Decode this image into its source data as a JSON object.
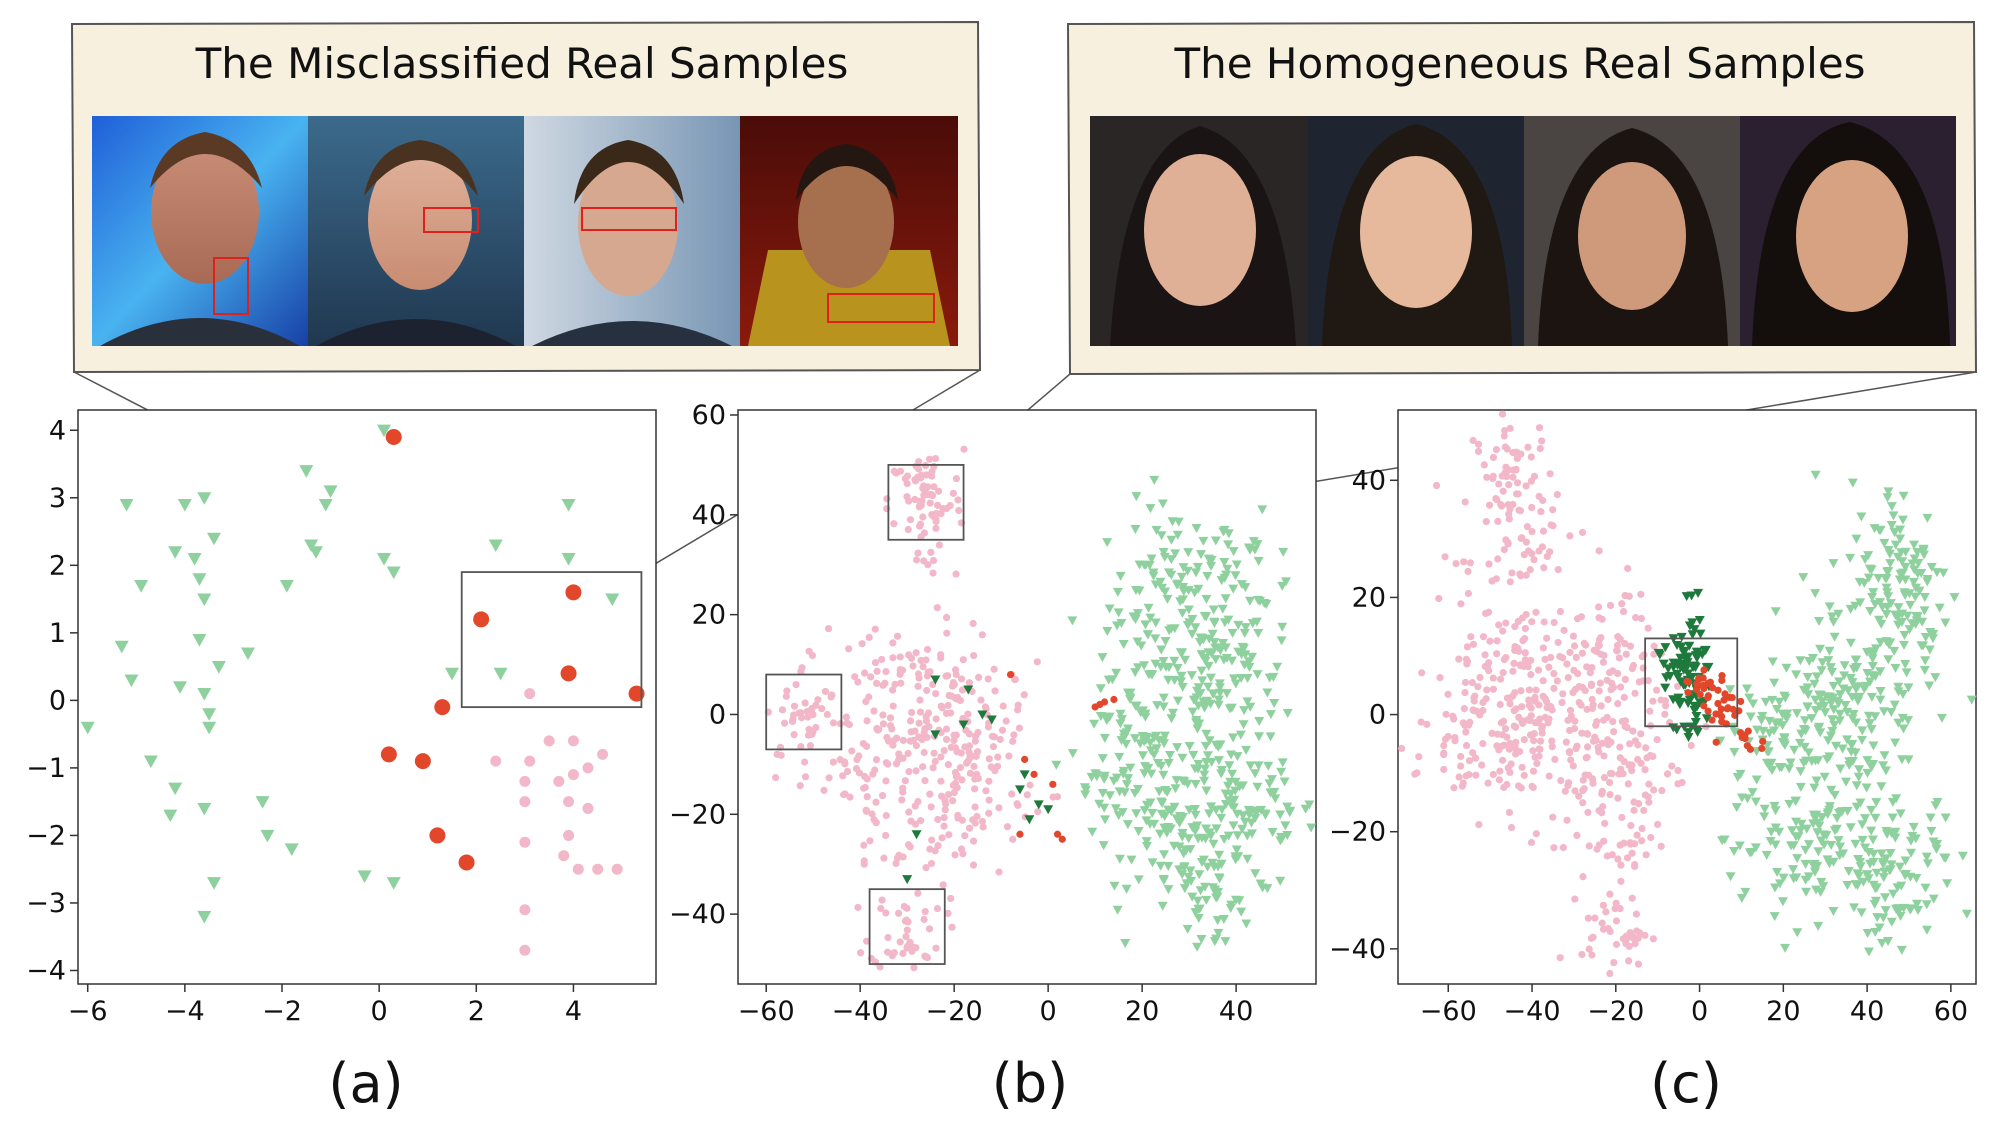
{
  "callouts": [
    {
      "title": "The Misclassified Real Samples"
    },
    {
      "title": "The Homogeneous Real Samples"
    }
  ],
  "colors": {
    "real": "#f2b8c9",
    "fake": "#8fd19e",
    "misclassified": "#e2472b",
    "fake_dark": "#1e7a3c",
    "callout_bg": "#f7f0df"
  },
  "chart_data": [
    {
      "type": "scatter",
      "panel_label": "(a)",
      "xlim": [
        -6.2,
        5.7
      ],
      "ylim": [
        -4.2,
        4.3
      ],
      "xticks": [
        -6,
        -4,
        -2,
        0,
        2,
        4
      ],
      "yticks": [
        -4,
        -3,
        -2,
        -1,
        0,
        1,
        2,
        3,
        4
      ],
      "tick_labels_x": [
        "−6",
        "−4",
        "−2",
        "0",
        "2",
        "4"
      ],
      "tick_labels_y": [
        "−4",
        "−3",
        "−2",
        "−1",
        "0",
        "1",
        "2",
        "3",
        "4"
      ],
      "zoom_box": {
        "x": [
          1.7,
          5.4
        ],
        "y": [
          -0.1,
          1.9
        ]
      },
      "series": [
        {
          "marker": "triangle",
          "color": "fake",
          "points": [
            [
              0.1,
              4.0
            ],
            [
              -5.2,
              2.9
            ],
            [
              -4.0,
              2.9
            ],
            [
              -3.6,
              3.0
            ],
            [
              -1.5,
              3.4
            ],
            [
              -1.0,
              3.1
            ],
            [
              -1.1,
              2.9
            ],
            [
              -3.4,
              2.4
            ],
            [
              -4.2,
              2.2
            ],
            [
              -3.8,
              2.1
            ],
            [
              -1.4,
              2.3
            ],
            [
              -1.3,
              2.2
            ],
            [
              0.1,
              2.1
            ],
            [
              0.3,
              1.9
            ],
            [
              -4.9,
              1.7
            ],
            [
              -3.7,
              1.8
            ],
            [
              -1.9,
              1.7
            ],
            [
              -3.6,
              1.5
            ],
            [
              2.4,
              2.3
            ],
            [
              3.9,
              2.9
            ],
            [
              3.9,
              2.1
            ],
            [
              4.8,
              1.5
            ],
            [
              -5.3,
              0.8
            ],
            [
              -3.7,
              0.9
            ],
            [
              -2.7,
              0.7
            ],
            [
              -3.3,
              0.5
            ],
            [
              -5.1,
              0.3
            ],
            [
              -4.1,
              0.2
            ],
            [
              -3.6,
              0.1
            ],
            [
              -3.5,
              -0.2
            ],
            [
              -3.5,
              -0.4
            ],
            [
              -6.0,
              -0.4
            ],
            [
              -4.7,
              -0.9
            ],
            [
              -4.2,
              -1.3
            ],
            [
              -4.3,
              -1.7
            ],
            [
              -3.6,
              -1.6
            ],
            [
              -2.4,
              -1.5
            ],
            [
              -2.3,
              -2.0
            ],
            [
              -1.8,
              -2.2
            ],
            [
              -3.4,
              -2.7
            ],
            [
              -3.6,
              -3.2
            ],
            [
              -0.3,
              -2.6
            ],
            [
              0.3,
              -2.7
            ],
            [
              1.5,
              0.4
            ],
            [
              2.5,
              0.4
            ]
          ]
        },
        {
          "marker": "circle",
          "color": "real",
          "points": [
            [
              3.1,
              0.1
            ],
            [
              3.5,
              -0.6
            ],
            [
              4.0,
              -0.6
            ],
            [
              4.6,
              -0.8
            ],
            [
              2.4,
              -0.9
            ],
            [
              3.1,
              -0.9
            ],
            [
              4.3,
              -1.0
            ],
            [
              4.0,
              -1.1
            ],
            [
              3.0,
              -1.2
            ],
            [
              3.7,
              -1.2
            ],
            [
              3.0,
              -1.5
            ],
            [
              3.9,
              -1.5
            ],
            [
              4.3,
              -1.6
            ],
            [
              3.9,
              -2.0
            ],
            [
              3.0,
              -2.1
            ],
            [
              3.8,
              -2.3
            ],
            [
              4.1,
              -2.5
            ],
            [
              4.5,
              -2.5
            ],
            [
              4.9,
              -2.5
            ],
            [
              3.0,
              -3.1
            ],
            [
              3.0,
              -3.7
            ]
          ]
        },
        {
          "marker": "circle",
          "color": "misclassified",
          "big": true,
          "points": [
            [
              0.3,
              3.9
            ],
            [
              4.0,
              1.6
            ],
            [
              2.1,
              1.2
            ],
            [
              3.9,
              0.4
            ],
            [
              5.3,
              0.1
            ],
            [
              1.3,
              -0.1
            ],
            [
              0.2,
              -0.8
            ],
            [
              0.9,
              -0.9
            ],
            [
              1.2,
              -2.0
            ],
            [
              1.8,
              -2.4
            ]
          ]
        }
      ]
    },
    {
      "type": "scatter",
      "panel_label": "(b)",
      "xlim": [
        -66,
        57
      ],
      "ylim": [
        -54,
        61
      ],
      "xticks": [
        -60,
        -40,
        -20,
        0,
        20,
        40
      ],
      "yticks": [
        -40,
        -20,
        0,
        20,
        40,
        60
      ],
      "tick_labels_x": [
        "−60",
        "−40",
        "−20",
        "0",
        "20",
        "40"
      ],
      "tick_labels_y": [
        "−40",
        "−20",
        "0",
        "20",
        "40",
        "60"
      ],
      "zoom_boxes": [
        {
          "x": [
            -34,
            -18
          ],
          "y": [
            35,
            50
          ]
        },
        {
          "x": [
            -60,
            -44
          ],
          "y": [
            -7,
            8
          ]
        },
        {
          "x": [
            -38,
            -22
          ],
          "y": [
            -50,
            -35
          ]
        }
      ],
      "series": [
        {
          "marker": "triangle",
          "color": "fake",
          "clusters": [
            [
              27,
              22,
              7,
              10,
              110
            ],
            [
              33,
              5,
              8,
              12,
              110
            ],
            [
              22,
              -12,
              7,
              8,
              80
            ],
            [
              43,
              -20,
              7,
              8,
              80
            ],
            [
              30,
              -28,
              6,
              7,
              70
            ],
            [
              36,
              -38,
              4,
              5,
              30
            ],
            [
              42,
              22,
              6,
              8,
              50
            ],
            [
              15,
              -2,
              4,
              6,
              25
            ],
            [
              10,
              -15,
              3,
              5,
              15
            ]
          ]
        },
        {
          "marker": "circle",
          "color": "real",
          "clusters": [
            [
              -26,
              43,
              4,
              5,
              70
            ],
            [
              -26,
              30,
              3,
              3,
              8
            ],
            [
              -52,
              0,
              4,
              5,
              35
            ],
            [
              -46,
              -10,
              2,
              2,
              4
            ],
            [
              -30,
              -43,
              4,
              4,
              40
            ],
            [
              -30,
              -2,
              10,
              10,
              160
            ],
            [
              -14,
              -8,
              7,
              9,
              70
            ],
            [
              -40,
              -15,
              6,
              6,
              35
            ],
            [
              -18,
              -18,
              6,
              6,
              30
            ],
            [
              -28,
              -28,
              5,
              4,
              20
            ],
            [
              -22,
              6,
              8,
              4,
              25
            ]
          ]
        },
        {
          "marker": "triangle",
          "color": "fake_dark",
          "points": [
            [
              -24,
              7
            ],
            [
              -17,
              5
            ],
            [
              -24,
              -4
            ],
            [
              -14,
              0
            ],
            [
              -5,
              -12
            ],
            [
              -6,
              -15
            ],
            [
              -30,
              -33
            ],
            [
              -2,
              -18
            ],
            [
              -28,
              -24
            ],
            [
              -18,
              -2
            ],
            [
              -12,
              -1
            ],
            [
              0,
              -19
            ],
            [
              -4,
              -21
            ]
          ]
        },
        {
          "marker": "circle",
          "color": "misclassified",
          "points": [
            [
              -8,
              8
            ],
            [
              11,
              2
            ],
            [
              12,
              2.5
            ],
            [
              14,
              3
            ],
            [
              10,
              1.5
            ],
            [
              -5,
              -9
            ],
            [
              -3,
              -12
            ],
            [
              1,
              -14
            ],
            [
              2,
              -24
            ],
            [
              3,
              -25
            ],
            [
              -6,
              -24
            ]
          ]
        }
      ]
    },
    {
      "type": "scatter",
      "panel_label": "(c)",
      "xlim": [
        -72,
        66
      ],
      "ylim": [
        -46,
        52
      ],
      "xticks": [
        -60,
        -40,
        -20,
        0,
        20,
        40,
        60
      ],
      "yticks": [
        -40,
        -20,
        0,
        20,
        40
      ],
      "tick_labels_x": [
        "−60",
        "−40",
        "−20",
        "0",
        "20",
        "40",
        "60"
      ],
      "tick_labels_y": [
        "−40",
        "−20",
        "0",
        "20",
        "40"
      ],
      "zoom_box": {
        "x": [
          -13,
          9
        ],
        "y": [
          -2,
          13
        ]
      },
      "series": [
        {
          "marker": "circle",
          "color": "real",
          "clusters": [
            [
              -44,
              38,
              5,
              7,
              90
            ],
            [
              -42,
              26,
              3,
              4,
              15
            ],
            [
              -40,
              2,
              14,
              10,
              260
            ],
            [
              -25,
              -6,
              8,
              7,
              70
            ],
            [
              -22,
              10,
              6,
              5,
              40
            ],
            [
              -52,
              -4,
              8,
              6,
              50
            ],
            [
              -18,
              -22,
              6,
              4,
              30
            ],
            [
              -20,
              -37,
              4,
              3,
              40
            ],
            [
              -14,
              -10,
              5,
              5,
              30
            ]
          ]
        },
        {
          "marker": "triangle",
          "color": "fake",
          "clusters": [
            [
              48,
              22,
              6,
              9,
              130
            ],
            [
              36,
              6,
              8,
              8,
              90
            ],
            [
              22,
              0,
              7,
              6,
              60
            ],
            [
              38,
              -18,
              10,
              10,
              150
            ],
            [
              22,
              -22,
              8,
              6,
              70
            ],
            [
              44,
              -30,
              6,
              4,
              40
            ],
            [
              14,
              -4,
              4,
              4,
              20
            ]
          ]
        },
        {
          "marker": "triangle",
          "color": "fake_dark",
          "clusters": [
            [
              -3,
              6,
              3,
              4,
              70
            ],
            [
              -6,
              10,
              2,
              2,
              10
            ],
            [
              -1,
              16,
              1,
              2,
              6
            ],
            [
              -3,
              -2,
              2,
              2,
              8
            ]
          ]
        },
        {
          "marker": "circle",
          "color": "misclassified",
          "clusters": [
            [
              5,
              2,
              2,
              3,
              30
            ],
            [
              0,
              6,
              2,
              2,
              14
            ],
            [
              12,
              -5,
              2,
              1,
              8
            ]
          ]
        }
      ]
    }
  ]
}
